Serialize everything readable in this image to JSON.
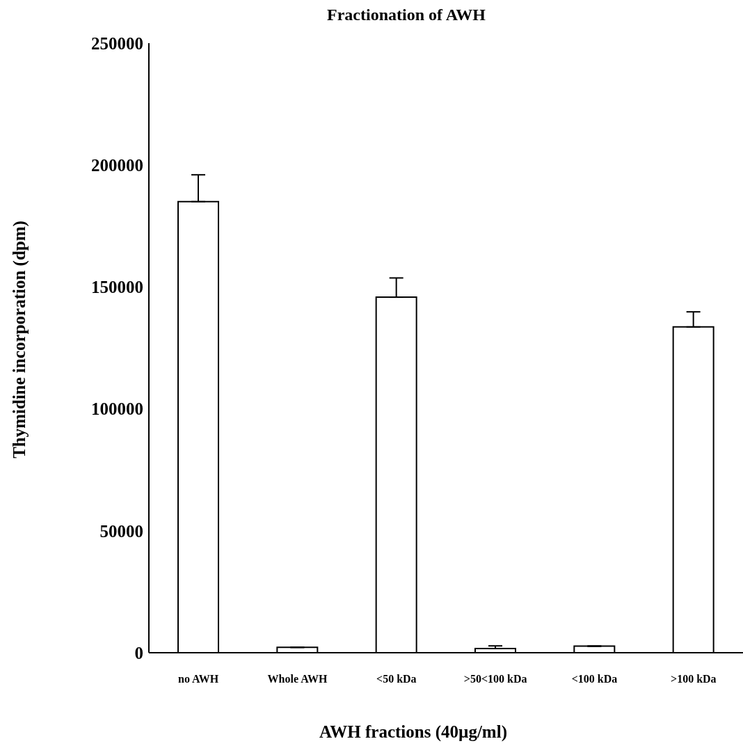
{
  "chart_data": {
    "type": "bar",
    "title": "Fractionation of AWH",
    "xlabel": "AWH fractions (40µg/ml)",
    "ylabel": "Thymidine incorporation (dpm)",
    "categories": [
      "no AWH",
      "Whole AWH",
      "<50 kDa",
      ">50<100 kDa",
      "<100 kDa",
      ">100 kDa"
    ],
    "values": [
      185000,
      2200,
      145800,
      1700,
      2700,
      133600
    ],
    "errors": [
      [
        185000,
        196000
      ],
      null,
      [
        145800,
        153700
      ],
      [
        1700,
        2800
      ],
      null,
      [
        133600,
        139800
      ]
    ],
    "color": "#ffffff",
    "ylim": [
      0,
      250000
    ],
    "yticks": [
      0,
      50000,
      100000,
      150000,
      200000,
      250000
    ],
    "grid": false
  }
}
